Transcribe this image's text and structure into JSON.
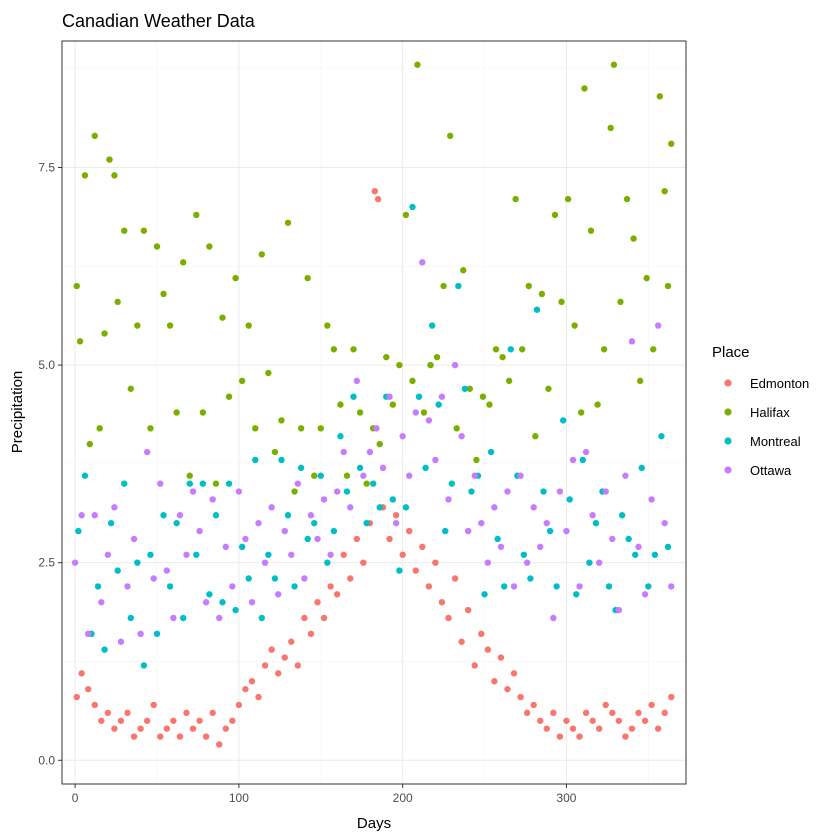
{
  "chart_data": {
    "type": "scatter",
    "title": "Canadian Weather Data",
    "xlabel": "Days",
    "ylabel": "Precipitation",
    "xlim": [
      -8,
      373
    ],
    "ylim": [
      -0.3,
      9.1
    ],
    "x_ticks": [
      0,
      100,
      200,
      300
    ],
    "y_ticks": [
      0.0,
      2.5,
      5.0,
      7.5
    ],
    "y_tick_labels": [
      "0.0",
      "2.5",
      "5.0",
      "7.5"
    ],
    "grid": true,
    "legend": {
      "title": "Place",
      "position": "right"
    },
    "series": [
      {
        "name": "Edmonton",
        "color": "#F8766D",
        "x": [
          1,
          4,
          8,
          12,
          16,
          20,
          24,
          28,
          32,
          36,
          40,
          44,
          48,
          52,
          56,
          60,
          64,
          68,
          72,
          76,
          80,
          84,
          88,
          92,
          96,
          100,
          104,
          108,
          112,
          116,
          120,
          124,
          128,
          132,
          136,
          140,
          144,
          148,
          152,
          156,
          160,
          164,
          168,
          172,
          176,
          180,
          183,
          185,
          188,
          192,
          196,
          200,
          204,
          208,
          212,
          216,
          220,
          224,
          228,
          232,
          236,
          240,
          244,
          248,
          252,
          256,
          260,
          264,
          268,
          272,
          276,
          280,
          284,
          288,
          292,
          296,
          300,
          304,
          308,
          312,
          316,
          320,
          324,
          328,
          332,
          336,
          340,
          344,
          348,
          352,
          356,
          360,
          364
        ],
        "y": [
          0.8,
          1.1,
          0.9,
          0.7,
          0.5,
          0.6,
          0.4,
          0.5,
          0.6,
          0.3,
          0.4,
          0.5,
          0.7,
          0.3,
          0.4,
          0.5,
          0.3,
          0.6,
          0.4,
          0.5,
          0.3,
          0.6,
          0.2,
          0.4,
          0.5,
          0.7,
          0.9,
          1.0,
          0.8,
          1.2,
          1.4,
          1.1,
          1.3,
          1.5,
          1.2,
          1.8,
          1.6,
          2.0,
          1.8,
          2.2,
          2.1,
          2.6,
          2.3,
          2.8,
          2.5,
          3.0,
          7.2,
          7.1,
          3.2,
          2.8,
          3.1,
          2.6,
          2.9,
          2.4,
          2.7,
          2.2,
          2.5,
          2.0,
          1.8,
          2.3,
          1.5,
          1.9,
          1.2,
          1.6,
          1.4,
          1.0,
          1.3,
          0.9,
          1.1,
          0.8,
          0.6,
          0.7,
          0.5,
          0.4,
          0.6,
          0.3,
          0.5,
          0.4,
          0.3,
          0.6,
          0.5,
          0.4,
          0.7,
          0.6,
          0.5,
          0.3,
          0.4,
          0.6,
          0.5,
          0.7,
          0.4,
          0.6,
          0.8
        ]
      },
      {
        "name": "Halifax",
        "color": "#7CAE00",
        "x": [
          1,
          3,
          6,
          9,
          12,
          15,
          18,
          21,
          24,
          26,
          30,
          34,
          38,
          42,
          46,
          50,
          54,
          58,
          62,
          66,
          70,
          74,
          78,
          82,
          86,
          90,
          94,
          98,
          102,
          106,
          110,
          114,
          118,
          122,
          126,
          130,
          134,
          138,
          142,
          146,
          150,
          154,
          158,
          162,
          166,
          170,
          174,
          178,
          182,
          186,
          190,
          194,
          198,
          202,
          206,
          209,
          213,
          217,
          221,
          225,
          229,
          233,
          237,
          241,
          245,
          249,
          253,
          257,
          261,
          265,
          269,
          273,
          277,
          281,
          285,
          289,
          293,
          297,
          301,
          305,
          309,
          311,
          315,
          319,
          323,
          327,
          329,
          333,
          337,
          341,
          345,
          349,
          353,
          357,
          360,
          362,
          364
        ],
        "y": [
          6.0,
          5.3,
          7.4,
          4.0,
          7.9,
          4.2,
          5.4,
          7.6,
          7.4,
          5.8,
          6.7,
          4.7,
          5.5,
          6.7,
          4.2,
          6.5,
          5.9,
          5.5,
          4.4,
          6.3,
          3.6,
          6.9,
          4.4,
          6.5,
          3.5,
          5.6,
          4.6,
          6.1,
          4.8,
          5.5,
          4.2,
          6.4,
          4.9,
          3.9,
          4.3,
          6.8,
          3.4,
          4.2,
          6.1,
          3.6,
          4.2,
          5.5,
          5.2,
          4.5,
          3.6,
          5.2,
          4.4,
          3.5,
          4.2,
          4.0,
          5.1,
          4.5,
          5.0,
          6.9,
          4.8,
          8.8,
          4.4,
          5.0,
          5.1,
          6.0,
          7.9,
          4.2,
          6.2,
          4.7,
          3.8,
          4.6,
          4.5,
          5.2,
          5.1,
          4.8,
          7.1,
          5.2,
          6.0,
          4.1,
          5.9,
          4.7,
          6.9,
          5.8,
          7.1,
          5.5,
          4.4,
          8.5,
          6.7,
          4.5,
          5.2,
          8.0,
          8.8,
          5.8,
          7.1,
          6.6,
          4.8,
          6.1,
          5.2,
          8.4,
          7.2,
          6.0,
          7.8
        ]
      },
      {
        "name": "Montreal",
        "color": "#00BFC4",
        "x": [
          2,
          6,
          10,
          14,
          18,
          22,
          26,
          30,
          34,
          38,
          42,
          46,
          50,
          54,
          58,
          62,
          66,
          70,
          74,
          78,
          82,
          86,
          90,
          94,
          98,
          102,
          106,
          110,
          114,
          118,
          122,
          126,
          130,
          134,
          138,
          142,
          146,
          150,
          154,
          158,
          162,
          166,
          170,
          174,
          178,
          182,
          186,
          190,
          194,
          198,
          202,
          206,
          210,
          214,
          218,
          222,
          226,
          230,
          234,
          238,
          242,
          246,
          250,
          254,
          258,
          262,
          266,
          270,
          274,
          278,
          282,
          286,
          290,
          294,
          298,
          302,
          306,
          310,
          314,
          318,
          322,
          326,
          330,
          334,
          338,
          342,
          346,
          350,
          354,
          358,
          362
        ],
        "y": [
          2.9,
          3.6,
          1.6,
          2.2,
          1.4,
          3.0,
          2.4,
          3.5,
          1.8,
          2.5,
          1.2,
          2.6,
          1.6,
          3.1,
          2.2,
          3.0,
          1.8,
          3.5,
          2.6,
          3.5,
          2.1,
          3.1,
          2.0,
          3.5,
          1.9,
          2.7,
          2.3,
          3.8,
          1.8,
          2.6,
          2.3,
          3.8,
          3.1,
          2.2,
          3.7,
          2.8,
          3.0,
          3.6,
          2.5,
          2.9,
          4.1,
          3.4,
          4.6,
          3.7,
          3.0,
          3.5,
          3.2,
          4.6,
          3.3,
          2.4,
          3.2,
          7.0,
          4.6,
          3.7,
          5.5,
          4.5,
          2.9,
          3.5,
          6.0,
          4.7,
          3.4,
          3.6,
          2.1,
          3.9,
          2.8,
          2.2,
          5.2,
          3.6,
          2.6,
          2.3,
          5.7,
          3.4,
          2.9,
          2.2,
          4.3,
          3.3,
          2.1,
          3.8,
          2.5,
          3.0,
          3.4,
          2.2,
          1.9,
          3.1,
          2.8,
          2.6,
          3.7,
          2.2,
          2.6,
          4.1,
          2.7
        ]
      },
      {
        "name": "Ottawa",
        "color": "#C77CFF",
        "x": [
          0,
          4,
          8,
          12,
          16,
          20,
          24,
          28,
          32,
          36,
          40,
          44,
          48,
          52,
          56,
          60,
          64,
          68,
          72,
          76,
          80,
          84,
          88,
          92,
          96,
          100,
          104,
          108,
          112,
          116,
          120,
          124,
          128,
          132,
          136,
          140,
          144,
          148,
          152,
          156,
          160,
          164,
          168,
          172,
          176,
          180,
          184,
          188,
          192,
          196,
          200,
          204,
          208,
          212,
          216,
          220,
          224,
          228,
          232,
          236,
          240,
          244,
          248,
          252,
          256,
          260,
          264,
          268,
          272,
          276,
          280,
          284,
          288,
          292,
          296,
          300,
          304,
          308,
          312,
          316,
          320,
          324,
          328,
          332,
          336,
          340,
          344,
          348,
          352,
          356,
          360,
          364
        ],
        "y": [
          2.5,
          3.1,
          1.6,
          3.1,
          2.0,
          2.6,
          3.2,
          1.5,
          2.2,
          2.8,
          1.6,
          3.9,
          2.3,
          3.5,
          2.4,
          1.8,
          3.1,
          2.6,
          3.4,
          2.9,
          2.0,
          3.3,
          1.8,
          2.7,
          2.2,
          3.4,
          2.8,
          2.0,
          3.0,
          2.5,
          3.2,
          2.1,
          2.9,
          2.6,
          3.5,
          2.3,
          3.1,
          2.8,
          3.3,
          2.6,
          3.4,
          3.9,
          3.2,
          4.8,
          3.6,
          3.9,
          4.2,
          3.7,
          4.6,
          3.0,
          4.1,
          3.6,
          4.4,
          6.3,
          4.3,
          3.8,
          4.6,
          3.3,
          5.0,
          4.1,
          2.9,
          3.6,
          3.0,
          2.5,
          3.2,
          2.7,
          3.4,
          2.2,
          3.6,
          2.5,
          3.2,
          2.7,
          3.0,
          1.8,
          3.4,
          2.9,
          3.8,
          2.2,
          3.9,
          3.1,
          2.5,
          3.4,
          2.8,
          1.9,
          3.6,
          5.3,
          2.7,
          2.1,
          3.3,
          5.5,
          3.0,
          2.2
        ]
      }
    ]
  }
}
